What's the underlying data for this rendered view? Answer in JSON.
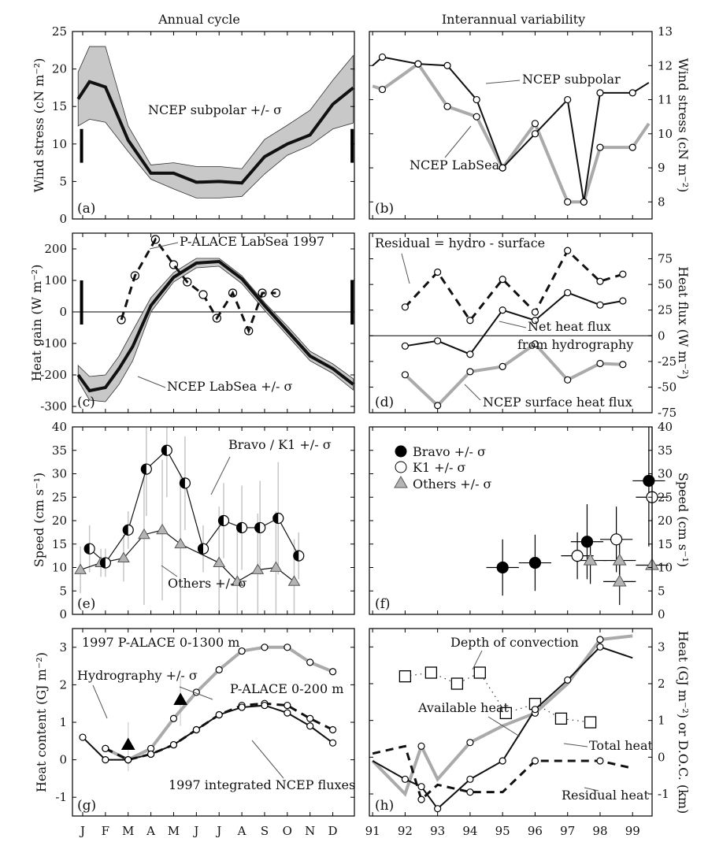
{
  "column_titles": [
    "Annual cycle",
    "Interannual variability"
  ],
  "month_labels": [
    "J",
    "F",
    "M",
    "A",
    "M",
    "J",
    "J",
    "A",
    "S",
    "O",
    "N",
    "D"
  ],
  "year_labels": [
    "91",
    "92",
    "93",
    "94",
    "95",
    "96",
    "97",
    "98",
    "99"
  ],
  "colors": {
    "black": "#111111",
    "gray": "#aaaaaa",
    "band": "#c8c8c8",
    "marker_gray": "#b4b4b4"
  },
  "chart_data": [
    {
      "panel": "(a)",
      "type": "line",
      "ylabel": "Wind stress (cN m⁻²)",
      "ylim": [
        0,
        25
      ],
      "yticks": [
        0,
        5,
        10,
        15,
        20,
        25
      ],
      "x": [
        1,
        2,
        3,
        4,
        5,
        6,
        7,
        8,
        9,
        10,
        11,
        12
      ],
      "series": [
        {
          "values": [
            16.0,
            18.3,
            17.6,
            10.5,
            6.1,
            6.1,
            4.9,
            5.0,
            4.8,
            8.3,
            10.0,
            11.2,
            15.3,
            17.5
          ],
          "x": [
            0.8,
            1.3,
            2,
            3,
            4,
            5,
            6,
            7,
            8,
            9,
            10,
            11,
            12,
            12.9
          ],
          "lower": [
            12.4,
            13.3,
            12.9,
            9.0,
            5.3,
            4.0,
            2.8,
            2.8,
            3.0,
            6.0,
            8.5,
            9.8,
            12.0,
            12.8
          ],
          "upper": [
            19.6,
            23.0,
            23.0,
            12.4,
            7.2,
            7.5,
            7.0,
            7.0,
            6.7,
            10.6,
            12.5,
            14.5,
            18.5,
            21.8
          ]
        }
      ],
      "error_bars": [
        {
          "x": 0.95,
          "low": 7.5,
          "high": 12.0
        },
        {
          "x": 12.85,
          "low": 7.5,
          "high": 12.0
        }
      ],
      "annotations": [
        "NCEP subpolar +/- σ"
      ]
    },
    {
      "panel": "(b)",
      "type": "line",
      "ylabel": "Wind stress (cN m⁻²)",
      "ylim": [
        7.5,
        13
      ],
      "yticks": [
        8,
        9,
        10,
        11,
        12,
        13
      ],
      "series": [
        {
          "name": "NCEP subpolar",
          "x": [
            91,
            91.3,
            92.4,
            93.3,
            94.2,
            95,
            96,
            97,
            97.5,
            98,
            99,
            99.5
          ],
          "values": [
            12.0,
            12.25,
            12.05,
            12.0,
            11.0,
            9.0,
            10.0,
            11.0,
            8.0,
            11.2,
            11.2,
            11.5
          ]
        },
        {
          "name": "NCEP LabSea",
          "x": [
            91,
            91.3,
            92.4,
            93.3,
            94.2,
            95,
            96,
            97,
            97.5,
            98,
            99,
            99.5
          ],
          "values": [
            11.4,
            11.3,
            12.05,
            10.8,
            10.5,
            9.0,
            10.3,
            8.0,
            8.0,
            9.6,
            9.6,
            10.3
          ]
        }
      ],
      "annotations": [
        "NCEP subpolar",
        "NCEP LabSea"
      ]
    },
    {
      "panel": "(c)",
      "type": "line",
      "ylabel": "Heat gain (W m⁻²)",
      "ylim": [
        -320,
        250
      ],
      "yticks": [
        -300,
        -200,
        -100,
        0,
        100,
        200
      ],
      "series": [
        {
          "name": "NCEP LabSea +/- σ",
          "x": [
            0.8,
            1.3,
            2,
            2.6,
            3.2,
            4,
            5,
            6,
            7,
            8,
            9,
            10,
            11,
            12,
            12.9
          ],
          "values": [
            -200,
            -250,
            -240,
            -180,
            -110,
            20,
            110,
            155,
            160,
            105,
            20,
            -60,
            -140,
            -180,
            -230
          ],
          "lower": [
            -218,
            -280,
            -285,
            -230,
            -155,
            0,
            95,
            140,
            145,
            90,
            5,
            -75,
            -155,
            -195,
            -248
          ],
          "upper": [
            -170,
            -205,
            -200,
            -140,
            -60,
            45,
            125,
            170,
            170,
            115,
            30,
            -45,
            -125,
            -165,
            -212
          ]
        },
        {
          "name": "P-ALACE LabSea 1997",
          "x": [
            2.7,
            3.3,
            4.2,
            5,
            5.6,
            6.3,
            6.9,
            7.6,
            8.3,
            8.9,
            9.5
          ],
          "values": [
            -25,
            115,
            230,
            150,
            95,
            55,
            -20,
            60,
            -60,
            60,
            60
          ]
        }
      ],
      "error_bars": [
        {
          "x": 0.95,
          "low": -40,
          "high": 100
        },
        {
          "x": 12.85,
          "low": -40,
          "high": 100
        }
      ],
      "annotations": [
        "P-ALACE LabSea 1997",
        "NCEP LabSea +/- σ"
      ]
    },
    {
      "panel": "(d)",
      "type": "line",
      "ylabel": "Heat flux (W m⁻²)",
      "ylim": [
        -75,
        100
      ],
      "yticks": [
        -75,
        -50,
        -25,
        0,
        25,
        50,
        75
      ],
      "series": [
        {
          "name": "Residual = hydro - surface",
          "x": [
            92,
            93,
            94,
            95,
            96,
            97,
            98,
            98.7
          ],
          "values": [
            28,
            62,
            15,
            55,
            23,
            83,
            53,
            60
          ]
        },
        {
          "name": "Net heat flux from hydrography",
          "x": [
            92,
            93,
            94,
            95,
            96,
            97,
            98,
            98.7
          ],
          "values": [
            -10,
            -5,
            -18,
            25,
            15,
            42,
            30,
            34
          ]
        },
        {
          "name": "NCEP surface heat flux",
          "x": [
            92,
            93,
            94,
            95,
            96,
            97,
            98,
            98.7
          ],
          "values": [
            -38,
            -68,
            -35,
            -30,
            -8,
            -43,
            -27,
            -28
          ]
        }
      ],
      "annotations": [
        "Residual = hydro - surface",
        "Net heat flux",
        "from hydrography",
        "NCEP surface heat flux"
      ]
    },
    {
      "panel": "(e)",
      "type": "scatter",
      "ylabel": "Speed (cm s⁻¹)",
      "ylim": [
        0,
        40
      ],
      "yticks": [
        0,
        5,
        10,
        15,
        20,
        25,
        30,
        35,
        40
      ],
      "series": [
        {
          "name": "Bravo / K1 +/- σ",
          "x": [
            1.3,
            2,
            3,
            3.8,
            4.7,
            5.5,
            6.3,
            7.2,
            8,
            8.8,
            9.6,
            10.5
          ],
          "values": [
            14,
            11,
            18,
            31,
            35,
            28,
            14,
            20,
            18.5,
            18.5,
            20.5,
            12.5
          ],
          "err": [
            5,
            3,
            4,
            10,
            10,
            10,
            5,
            8,
            9,
            10,
            12,
            5
          ]
        },
        {
          "name": "Others +/- σ",
          "x": [
            0.9,
            1.8,
            2.8,
            3.7,
            4.5,
            5.3,
            7.0,
            7.8,
            8.7,
            9.5,
            10.3
          ],
          "values": [
            9.5,
            11,
            12,
            17,
            18,
            15,
            11,
            7,
            9.5,
            10,
            7
          ],
          "err": [
            5,
            3,
            5,
            15,
            15,
            15,
            12,
            12,
            12,
            12,
            9
          ]
        }
      ],
      "annotations": [
        "Bravo / K1 +/- σ",
        "Others +/- σ"
      ]
    },
    {
      "panel": "(f)",
      "type": "scatter",
      "ylabel": "Speed (cm s⁻¹)",
      "ylim": [
        0,
        40
      ],
      "yticks": [
        0,
        5,
        10,
        15,
        20,
        25,
        30,
        35,
        40
      ],
      "series": [
        {
          "name": "Bravo +/- σ",
          "x": [
            95,
            96,
            97.6,
            99.5
          ],
          "values": [
            10,
            11,
            15.5,
            28.5
          ],
          "err": [
            6,
            6,
            8,
            14
          ]
        },
        {
          "name": "K1 +/- σ",
          "x": [
            97.3,
            98.5,
            99.6
          ],
          "values": [
            12.5,
            16,
            25
          ],
          "err": [
            5,
            7,
            15
          ]
        },
        {
          "name": "Others +/- σ",
          "x": [
            97.7,
            98.6,
            98.6,
            99.6
          ],
          "values": [
            11.5,
            11.5,
            7,
            10.5
          ],
          "err": [
            5,
            5,
            5,
            10
          ]
        }
      ],
      "legend": [
        "Bravo +/- σ",
        "K1 +/- σ",
        "Others +/- σ"
      ]
    },
    {
      "panel": "(g)",
      "type": "line",
      "ylabel": "Heat content (GJ m⁻²)",
      "ylim": [
        -1.5,
        3.5
      ],
      "yticks": [
        -1,
        0,
        1,
        2,
        3
      ],
      "series": [
        {
          "name": "1997 P-ALACE 0-1300 m",
          "x": [
            2,
            3,
            4,
            5,
            6,
            7,
            8,
            9,
            10,
            11,
            12
          ],
          "values": [
            0.3,
            0.0,
            0.3,
            1.1,
            1.8,
            2.4,
            2.9,
            3.0,
            3.0,
            2.6,
            2.35
          ]
        },
        {
          "name": "P-ALACE 0-200 m",
          "x": [
            2,
            3,
            4,
            5,
            6,
            7,
            8,
            9,
            10,
            11,
            12
          ],
          "values": [
            0.3,
            0.0,
            0.15,
            0.4,
            0.8,
            1.2,
            1.45,
            1.5,
            1.45,
            1.1,
            0.8
          ]
        },
        {
          "name": "1997 integrated NCEP fluxes",
          "x": [
            1,
            2,
            3,
            4,
            5,
            6,
            7,
            8,
            9,
            10,
            11,
            12
          ],
          "values": [
            0.6,
            0.0,
            0.0,
            0.15,
            0.4,
            0.8,
            1.2,
            1.4,
            1.45,
            1.25,
            0.9,
            0.45
          ]
        },
        {
          "name": "Hydrography +/- σ",
          "x": [
            3,
            5.3
          ],
          "values": [
            0.4,
            1.6
          ]
        }
      ],
      "annotations": [
        "1997 P-ALACE 0-1300 m",
        "Hydrography +/- σ",
        "P-ALACE 0-200 m",
        "1997 integrated NCEP fluxes"
      ]
    },
    {
      "panel": "(h)",
      "type": "line",
      "ylabel": "Heat (GJ m⁻²) or D.O.C. (km)",
      "ylim": [
        -1.6,
        3.5
      ],
      "yticks": [
        -1,
        0,
        1,
        2,
        3
      ],
      "series": [
        {
          "name": "Depth of convection",
          "x": [
            92,
            92.8,
            93.6,
            94.3,
            95.1,
            96,
            96.8,
            97.7
          ],
          "values": [
            2.2,
            2.3,
            2.0,
            2.3,
            1.2,
            1.45,
            1.05,
            0.95
          ]
        },
        {
          "name": "Available heat",
          "x": [
            91,
            92,
            92.5,
            93,
            94,
            95,
            96,
            97,
            98,
            99
          ],
          "values": [
            -0.1,
            -1.0,
            0.3,
            -0.6,
            0.4,
            0.85,
            1.2,
            2.0,
            3.2,
            3.3
          ]
        },
        {
          "name": "Total heat",
          "x": [
            91,
            92,
            92.5,
            93,
            94,
            95,
            96,
            97,
            98,
            99
          ],
          "values": [
            -0.1,
            -0.6,
            -0.8,
            -1.4,
            -0.6,
            -0.1,
            1.3,
            2.1,
            3.0,
            2.7
          ]
        },
        {
          "name": "Residual heat",
          "x": [
            91,
            92,
            92.5,
            93,
            94,
            95,
            96,
            97,
            98,
            99
          ],
          "values": [
            0.1,
            0.3,
            -1.15,
            -0.75,
            -0.95,
            -0.95,
            -0.1,
            -0.1,
            -0.1,
            -0.3
          ]
        }
      ],
      "annotations": [
        "Depth of convection",
        "Available heat",
        "Total heat",
        "Residual heat"
      ]
    }
  ]
}
